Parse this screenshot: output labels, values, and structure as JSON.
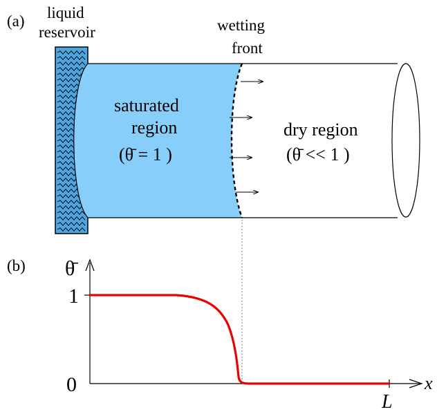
{
  "panel_a": {
    "label": "(a)",
    "reservoir_label": [
      "liquid",
      "reservoir"
    ],
    "front_label": [
      "wetting",
      "front"
    ],
    "saturated_label": [
      "saturated",
      "region"
    ],
    "saturated_value": "(θ̄ = 1 )",
    "dry_label": "dry region",
    "dry_value": "(θ̄ << 1 )"
  },
  "panel_b": {
    "label": "(b)",
    "y_axis_label": "θ̄",
    "x_axis_label": "x",
    "y_tick_1": "1",
    "y_tick_0": "0",
    "x_tick_L": "L"
  },
  "colors": {
    "reservoir_fill": "#4da6e0",
    "saturated_fill": "#87cefa",
    "profile_line": "#ee0000",
    "outline": "#000000"
  }
}
